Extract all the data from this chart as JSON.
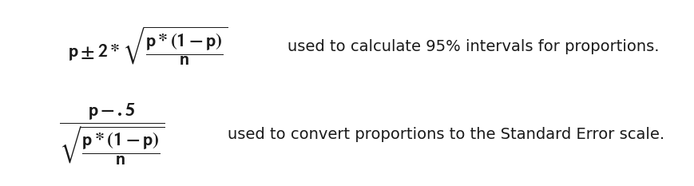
{
  "formula1": "$\\mathbf{p \\pm 2 * \\sqrt{\\dfrac{p*(1-p)}{n}}}$",
  "label1": "used to calculate 95% intervals for proportions.",
  "formula2": "$\\mathbf{\\dfrac{p - .5}{\\sqrt{\\dfrac{p*(1-p)}{n}}}}$",
  "label2": "used to convert proportions to the Standard Error scale.",
  "bg_color": "#ffffff",
  "text_color": "#1a1a1a",
  "formula1_fontsize": 17,
  "formula2_fontsize": 17,
  "label_fontsize": 14,
  "fig_width": 8.7,
  "fig_height": 2.33,
  "dpi": 100
}
